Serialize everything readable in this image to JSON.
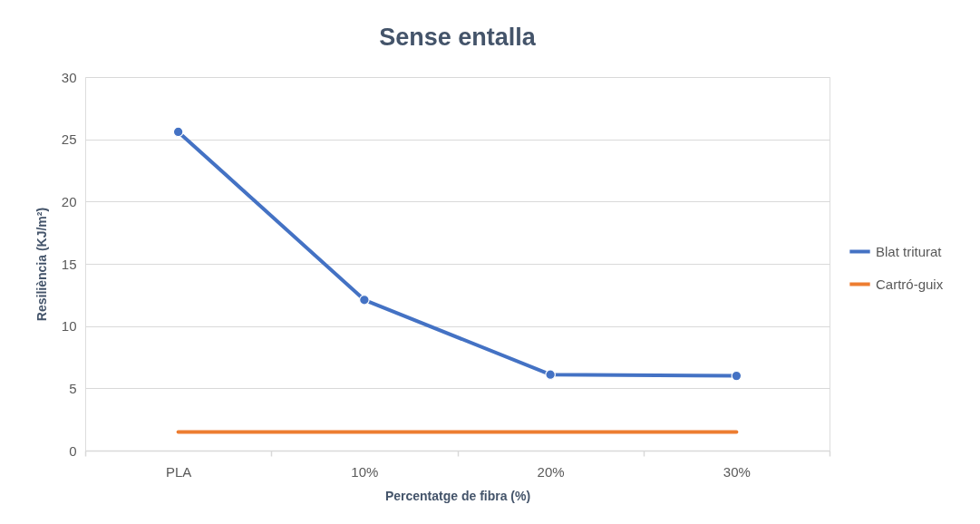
{
  "chart_data": {
    "type": "line",
    "title": "Sense entalla",
    "xlabel": "Percentatge de fibra (%)",
    "ylabel": "Resiliència (KJ/m²)",
    "categories": [
      "PLA",
      "10%",
      "20%",
      "30%"
    ],
    "series": [
      {
        "name": "Blat triturat",
        "color": "#4472c4",
        "values": [
          25.6,
          12.1,
          6.1,
          6.0
        ],
        "marker": "circle"
      },
      {
        "name": "Cartró-guix",
        "color": "#ed7d31",
        "values": [
          1.5,
          1.5,
          1.5,
          1.5
        ],
        "marker": "none"
      }
    ],
    "ylim": [
      0,
      30
    ],
    "yticks": [
      0,
      5,
      10,
      15,
      20,
      25,
      30
    ],
    "grid": "y",
    "legend": "right",
    "line_style": "solid"
  }
}
